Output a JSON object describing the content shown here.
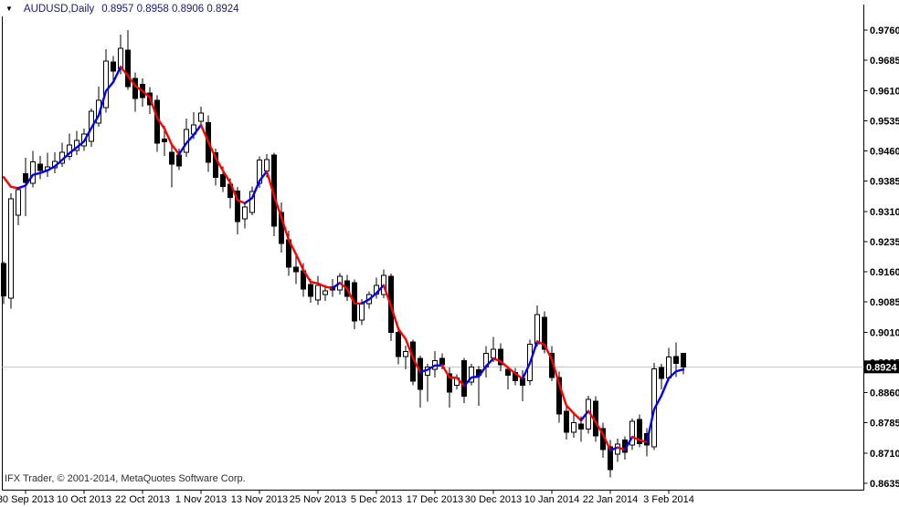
{
  "window": {
    "symbol_period": "AUDUSD,Daily",
    "ohlc_line": "0.8957 0.8958 0.8906 0.8924"
  },
  "footer": {
    "credit": "IFX Trader, © 2001-2014, MetaQuotes Software Corp."
  },
  "price_axis": {
    "labels": [
      "0.9760",
      "0.9685",
      "0.9610",
      "0.9535",
      "0.9460",
      "0.9385",
      "0.9310",
      "0.9235",
      "0.9160",
      "0.9085",
      "0.9010",
      "0.8935",
      "0.8860",
      "0.8785",
      "0.8710",
      "0.8635"
    ],
    "current_price": "0.8924"
  },
  "chart_data": {
    "type": "candlestick",
    "title": "AUDUSD,Daily",
    "symbol": "AUDUSD",
    "timeframe": "Daily",
    "last_ohlc": {
      "open": 0.8957,
      "high": 0.8958,
      "low": 0.8906,
      "close": 0.8924
    },
    "y_axis": {
      "top_price": 0.976,
      "bottom_price": 0.8635,
      "tick_step": 0.0075,
      "grid": false,
      "legend": "none"
    },
    "x_tick_labels": [
      "30 Sep 2013",
      "10 Oct 2013",
      "22 Oct 2013",
      "1 Nov 2013",
      "13 Nov 2013",
      "25 Nov 2013",
      "5 Dec 2013",
      "17 Dec 2013",
      "30 Dec 2013",
      "10 Jan 2014",
      "22 Jan 2014",
      "3 Feb 2014"
    ],
    "x_tick_indices": [
      3,
      11,
      19,
      27,
      35,
      43,
      51,
      59,
      67,
      75,
      83,
      91
    ],
    "candles_ohlc": [
      [
        0.918,
        0.9185,
        0.908,
        0.91
      ],
      [
        0.9095,
        0.9355,
        0.9068,
        0.9341
      ],
      [
        0.93,
        0.937,
        0.9276,
        0.9364
      ],
      [
        0.9404,
        0.9443,
        0.9298,
        0.9382
      ],
      [
        0.938,
        0.946,
        0.937,
        0.9433
      ],
      [
        0.9427,
        0.9448,
        0.939,
        0.9411
      ],
      [
        0.9413,
        0.9455,
        0.9395,
        0.942
      ],
      [
        0.9418,
        0.9457,
        0.9405,
        0.9434
      ],
      [
        0.943,
        0.948,
        0.942,
        0.9457
      ],
      [
        0.9447,
        0.9503,
        0.9438,
        0.9475
      ],
      [
        0.9461,
        0.951,
        0.945,
        0.9486
      ],
      [
        0.9473,
        0.9515,
        0.946,
        0.9502
      ],
      [
        0.9484,
        0.9565,
        0.947,
        0.9558
      ],
      [
        0.9529,
        0.962,
        0.952,
        0.9586
      ],
      [
        0.9568,
        0.9712,
        0.9555,
        0.9683
      ],
      [
        0.9681,
        0.9695,
        0.963,
        0.9658
      ],
      [
        0.9665,
        0.9749,
        0.965,
        0.9715
      ],
      [
        0.971,
        0.976,
        0.9612,
        0.962
      ],
      [
        0.964,
        0.9655,
        0.9557,
        0.959
      ],
      [
        0.9625,
        0.964,
        0.957,
        0.9593
      ],
      [
        0.9604,
        0.9618,
        0.9552,
        0.9574
      ],
      [
        0.9586,
        0.9598,
        0.9458,
        0.9479
      ],
      [
        0.949,
        0.9522,
        0.9448,
        0.9483
      ],
      [
        0.9457,
        0.9472,
        0.937,
        0.9427
      ],
      [
        0.945,
        0.9466,
        0.9412,
        0.9423
      ],
      [
        0.9457,
        0.954,
        0.9445,
        0.9513
      ],
      [
        0.9502,
        0.9556,
        0.949,
        0.9525
      ],
      [
        0.9534,
        0.957,
        0.952,
        0.9554
      ],
      [
        0.953,
        0.9548,
        0.9408,
        0.9432
      ],
      [
        0.9455,
        0.9466,
        0.9374,
        0.9394
      ],
      [
        0.9401,
        0.9422,
        0.9358,
        0.9372
      ],
      [
        0.9378,
        0.9392,
        0.9318,
        0.9345
      ],
      [
        0.936,
        0.9371,
        0.9253,
        0.9285
      ],
      [
        0.9291,
        0.9332,
        0.9268,
        0.9321
      ],
      [
        0.9307,
        0.9372,
        0.93,
        0.9359
      ],
      [
        0.938,
        0.9446,
        0.9368,
        0.9437
      ],
      [
        0.941,
        0.9452,
        0.9394,
        0.9439
      ],
      [
        0.945,
        0.9456,
        0.9248,
        0.9273
      ],
      [
        0.9307,
        0.9332,
        0.9208,
        0.923
      ],
      [
        0.9239,
        0.9262,
        0.915,
        0.9171
      ],
      [
        0.9171,
        0.9206,
        0.913,
        0.916
      ],
      [
        0.9162,
        0.9182,
        0.9098,
        0.9117
      ],
      [
        0.9128,
        0.9142,
        0.9083,
        0.9099
      ],
      [
        0.909,
        0.915,
        0.9078,
        0.9126
      ],
      [
        0.9103,
        0.9127,
        0.9088,
        0.9113
      ],
      [
        0.9123,
        0.9142,
        0.9098,
        0.9115
      ],
      [
        0.9115,
        0.9157,
        0.9103,
        0.9149
      ],
      [
        0.9137,
        0.9152,
        0.9088,
        0.9099
      ],
      [
        0.9133,
        0.9141,
        0.9018,
        0.9038
      ],
      [
        0.904,
        0.9092,
        0.9028,
        0.9081
      ],
      [
        0.9081,
        0.9112,
        0.9068,
        0.9104
      ],
      [
        0.9105,
        0.9146,
        0.9093,
        0.9126
      ],
      [
        0.9103,
        0.9166,
        0.9094,
        0.9151
      ],
      [
        0.9149,
        0.9156,
        0.8988,
        0.901
      ],
      [
        0.901,
        0.9022,
        0.893,
        0.895
      ],
      [
        0.895,
        0.8977,
        0.8918,
        0.8962
      ],
      [
        0.8986,
        0.8992,
        0.8878,
        0.8889
      ],
      [
        0.8945,
        0.8952,
        0.8823,
        0.8868
      ],
      [
        0.8903,
        0.8932,
        0.8838,
        0.8924
      ],
      [
        0.8918,
        0.8963,
        0.8898,
        0.894
      ],
      [
        0.8945,
        0.8958,
        0.8918,
        0.8929
      ],
      [
        0.8907,
        0.8922,
        0.8823,
        0.8861
      ],
      [
        0.8878,
        0.8906,
        0.8868,
        0.8896
      ],
      [
        0.894,
        0.8946,
        0.8834,
        0.8851
      ],
      [
        0.8886,
        0.8931,
        0.8878,
        0.8924
      ],
      [
        0.8917,
        0.8926,
        0.8827,
        0.8903
      ],
      [
        0.8924,
        0.8976,
        0.8898,
        0.8957
      ],
      [
        0.8946,
        0.8998,
        0.8936,
        0.8968
      ],
      [
        0.8968,
        0.8982,
        0.8913,
        0.8929
      ],
      [
        0.8918,
        0.8926,
        0.8868,
        0.8903
      ],
      [
        0.891,
        0.8921,
        0.8878,
        0.889
      ],
      [
        0.8895,
        0.8916,
        0.8839,
        0.8878
      ],
      [
        0.889,
        0.8992,
        0.8878,
        0.898
      ],
      [
        0.8981,
        0.9076,
        0.8974,
        0.9054
      ],
      [
        0.9047,
        0.9062,
        0.8958,
        0.8968
      ],
      [
        0.8957,
        0.8976,
        0.8888,
        0.8898
      ],
      [
        0.8898,
        0.8912,
        0.8786,
        0.8807
      ],
      [
        0.8814,
        0.8832,
        0.8744,
        0.8762
      ],
      [
        0.8762,
        0.8808,
        0.8748,
        0.8785
      ],
      [
        0.8782,
        0.8801,
        0.8738,
        0.877
      ],
      [
        0.877,
        0.8852,
        0.8758,
        0.8843
      ],
      [
        0.8839,
        0.8851,
        0.8738,
        0.8753
      ],
      [
        0.8771,
        0.8786,
        0.8698,
        0.8719
      ],
      [
        0.8726,
        0.8742,
        0.865,
        0.8669
      ],
      [
        0.8708,
        0.8746,
        0.8688,
        0.8732
      ],
      [
        0.8742,
        0.8752,
        0.8694,
        0.8712
      ],
      [
        0.873,
        0.8796,
        0.8718,
        0.8789
      ],
      [
        0.8794,
        0.8806,
        0.8724,
        0.8733
      ],
      [
        0.8758,
        0.8772,
        0.8702,
        0.873
      ],
      [
        0.8726,
        0.8934,
        0.8718,
        0.8919
      ],
      [
        0.8922,
        0.8931,
        0.8868,
        0.8895
      ],
      [
        0.8897,
        0.8971,
        0.8889,
        0.8949
      ],
      [
        0.895,
        0.8985,
        0.8899,
        0.8933
      ],
      [
        0.8957,
        0.8958,
        0.8906,
        0.8924
      ]
    ],
    "ma_line": {
      "type": "trend-colored EMA",
      "alpha": 0.45,
      "seed": 0.9395
    },
    "current_price": 0.8924,
    "colors": {
      "bull_body": "#ffffff",
      "bear_body": "#000000",
      "wick": "#000000",
      "ma_up": "#0000ff",
      "ma_down": "#ff0000",
      "price_line": "#c8c8c8",
      "price_tag_bg": "#000000",
      "price_tag_text": "#ffffff",
      "frame": "#000000",
      "title_text": "#191970"
    }
  }
}
